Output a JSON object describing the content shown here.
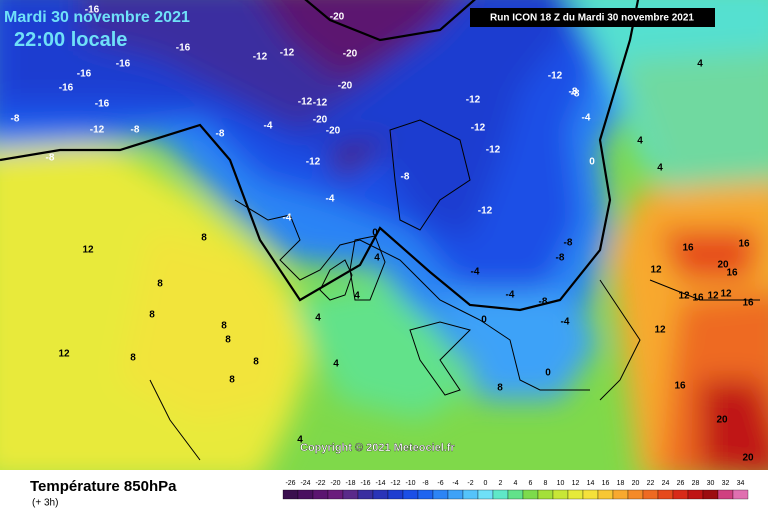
{
  "header": {
    "date": "Mardi 30 novembre 2021",
    "time": "22:00 locale",
    "run": "Run ICON 18 Z du Mardi 30 novembre 2021"
  },
  "map": {
    "labels": [
      "-16",
      "-16",
      "-16",
      "-16",
      "-16",
      "-16",
      "-20",
      "-20",
      "-20",
      "-12",
      "-12",
      "-12",
      "-8",
      "-8",
      "-8",
      "-8",
      "-12",
      "-12",
      "-20",
      "-20",
      "-12",
      "-12",
      "-8",
      "-4",
      "-4",
      "-12",
      "-12",
      "-12",
      "-8",
      "-12",
      "-8",
      "-8",
      "-4",
      "-4",
      "-4",
      "-8",
      "-4",
      "0",
      "0",
      "0",
      "4",
      "4",
      "4",
      "4",
      "4",
      "8",
      "8",
      "8",
      "8",
      "8",
      "8",
      "8",
      "8",
      "12",
      "12",
      "12",
      "16",
      "16",
      "16",
      "12",
      "16",
      "12",
      "12",
      "16",
      "20",
      "20",
      "20",
      "4",
      "4",
      "4",
      "0",
      "-4",
      "8",
      "12",
      "16",
      "-8"
    ],
    "copyright": "Copyright © 2021 Meteociel.fr"
  },
  "footer": {
    "title": "Température 850hPa",
    "subtitle": "(+ 3h)"
  },
  "legend": {
    "ticks": [
      -26,
      -24,
      -22,
      -20,
      -18,
      -16,
      -14,
      -12,
      -10,
      -8,
      -6,
      -4,
      -2,
      0,
      2,
      4,
      6,
      8,
      10,
      12,
      14,
      16,
      18,
      20,
      22,
      24,
      26,
      28,
      30,
      32,
      34
    ],
    "colors": [
      "#3a0f4e",
      "#4a1060",
      "#5b1470",
      "#6a1c7c",
      "#5a2a8a",
      "#3a2fa0",
      "#2a34b8",
      "#1e3dd0",
      "#1b4fe6",
      "#1e64f0",
      "#2c84f5",
      "#3ea2f8",
      "#55c3fa",
      "#6fe0f8",
      "#5fe8c8",
      "#62e28a",
      "#7ddb4c",
      "#a4e03a",
      "#c8e636",
      "#e6ea3a",
      "#f5e13a",
      "#f8c734",
      "#f8a92e",
      "#f48a28",
      "#ee6a22",
      "#e64a1c",
      "#d82a18",
      "#c01414",
      "#9c0c10",
      "#d04080",
      "#e070b0"
    ]
  }
}
